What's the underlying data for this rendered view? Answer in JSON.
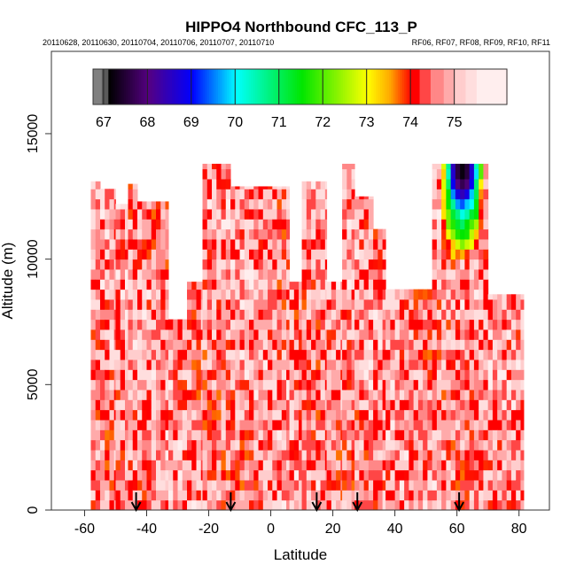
{
  "chart_data": {
    "type": "heatmap",
    "title": "HIPPO4 Northbound CFC_113_P",
    "subtitle_left": "20110628, 20110630, 20110704, 20110706, 20110707, 20110710",
    "subtitle_right": "RF06, RF07, RF08, RF09, RF10, RF11",
    "xlabel": "Latitude",
    "ylabel": "Altitude (m)",
    "xlim": [
      -70.7,
      89.8
    ],
    "ylim": [
      0,
      18280
    ],
    "xticks": [
      -60,
      -40,
      -20,
      0,
      20,
      40,
      60,
      80
    ],
    "xtick_labels": [
      "-60",
      "-40",
      "-20",
      "0",
      "20",
      "40",
      "60",
      "80"
    ],
    "yticks": [
      0,
      5000,
      10000,
      15000
    ],
    "ytick_labels": [
      "0",
      "5000",
      "10000",
      "15000"
    ],
    "colorbar": {
      "range": [
        66.76,
        76.2
      ],
      "ticks": [
        67,
        68,
        69,
        70,
        71,
        72,
        73,
        74,
        75
      ],
      "tick_labels": [
        "67",
        "68",
        "69",
        "70",
        "71",
        "72",
        "73",
        "74",
        "75"
      ],
      "placement": "top-inside"
    },
    "arrow_latitudes": [
      -43.4,
      -12.9,
      14.8,
      27.9,
      60.7
    ],
    "profile_ceiling": [
      {
        "lat": [
          -58,
          -55
        ],
        "alt": 13100
      },
      {
        "lat": [
          -55,
          -50
        ],
        "alt": 12800
      },
      {
        "lat": [
          -50,
          -46
        ],
        "alt": 12200
      },
      {
        "lat": [
          -46,
          -43
        ],
        "alt": 13000
      },
      {
        "lat": [
          -43,
          -33
        ],
        "alt": 12300
      },
      {
        "lat": [
          -33,
          -27
        ],
        "alt": 7600
      },
      {
        "lat": [
          -27,
          -22
        ],
        "alt": 9100
      },
      {
        "lat": [
          -22,
          -13
        ],
        "alt": 13800
      },
      {
        "lat": [
          -13,
          6
        ],
        "alt": 12900
      },
      {
        "lat": [
          6,
          10
        ],
        "alt": 9100
      },
      {
        "lat": [
          10,
          18
        ],
        "alt": 13100
      },
      {
        "lat": [
          18,
          23
        ],
        "alt": 9100
      },
      {
        "lat": [
          23,
          27
        ],
        "alt": 13800
      },
      {
        "lat": [
          27,
          33
        ],
        "alt": 12500
      },
      {
        "lat": [
          33,
          37
        ],
        "alt": 11200
      },
      {
        "lat": [
          37,
          52
        ],
        "alt": 8800
      },
      {
        "lat": [
          52,
          70
        ],
        "alt": 13800
      },
      {
        "lat": [
          70,
          81.5
        ],
        "alt": 8600
      }
    ],
    "typical_value_range": [
      73.8,
      75.5
    ],
    "low_value_region": {
      "lat": [
        54,
        68
      ],
      "alt_above": 9500,
      "min_value": 67.2
    }
  }
}
